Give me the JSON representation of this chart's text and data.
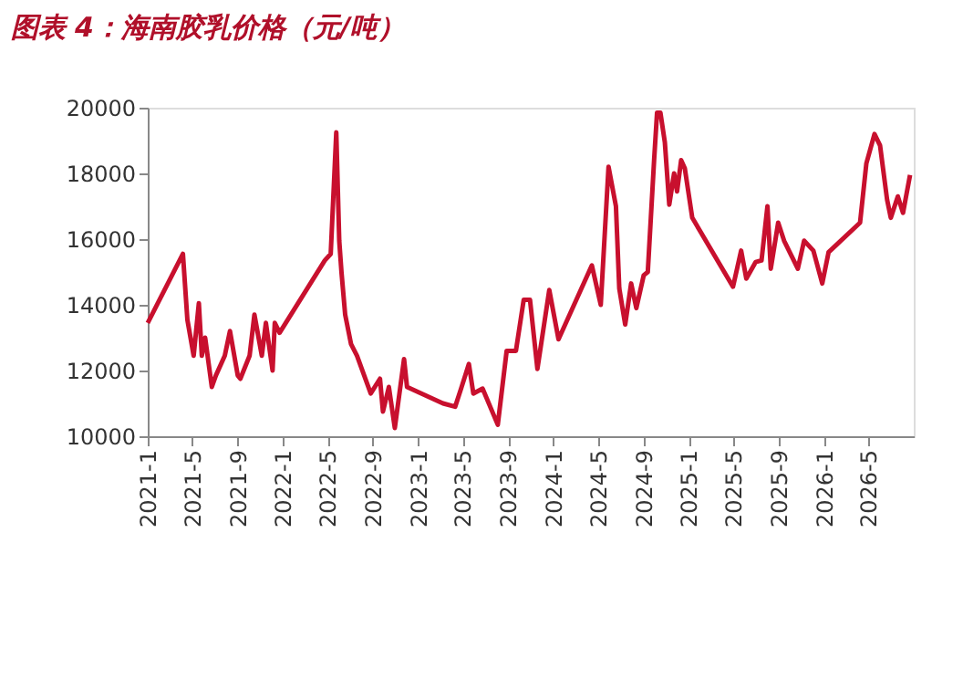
{
  "chart_data": {
    "type": "line",
    "title": "图表 4：海南胶乳价格（元/吨）",
    "xlim": [
      "2021-01-01",
      "2026-08-31"
    ],
    "xticks": [
      {
        "value": "2021-01-01",
        "label": "2021-1"
      },
      {
        "value": "2021-05-01",
        "label": "2021-5"
      },
      {
        "value": "2021-09-01",
        "label": "2021-9"
      },
      {
        "value": "2022-01-01",
        "label": "2022-1"
      },
      {
        "value": "2022-05-01",
        "label": "2022-5"
      },
      {
        "value": "2022-09-01",
        "label": "2022-9"
      },
      {
        "value": "2023-01-01",
        "label": "2023-1"
      },
      {
        "value": "2023-05-01",
        "label": "2023-5"
      },
      {
        "value": "2023-09-01",
        "label": "2023-9"
      },
      {
        "value": "2024-01-01",
        "label": "2024-1"
      },
      {
        "value": "2024-05-01",
        "label": "2024-5"
      },
      {
        "value": "2024-09-01",
        "label": "2024-9"
      },
      {
        "value": "2025-01-01",
        "label": "2025-1"
      },
      {
        "value": "2025-05-01",
        "label": "2025-5"
      },
      {
        "value": "2025-09-01",
        "label": "2025-9"
      },
      {
        "value": "2026-01-01",
        "label": "2026-1"
      },
      {
        "value": "2026-05-01",
        "label": "2026-5"
      }
    ],
    "ylim": [
      10000,
      20000
    ],
    "yticks": [
      10000,
      12000,
      14000,
      16000,
      18000,
      20000
    ],
    "grid": false,
    "line_style": "solid",
    "marker": "none",
    "x": [
      "2021-01-01",
      "2021-04-06",
      "2021-04-18",
      "2021-05-05",
      "2021-05-19",
      "2021-05-27",
      "2021-06-05",
      "2021-06-23",
      "2021-07-04",
      "2021-07-28",
      "2021-08-11",
      "2021-09-01",
      "2021-09-08",
      "2021-10-03",
      "2021-10-16",
      "2021-11-05",
      "2021-11-16",
      "2021-12-04",
      "2021-12-10",
      "2021-12-23",
      "2022-04-24",
      "2022-05-10",
      "2022-05-25",
      "2022-06-02",
      "2022-06-08",
      "2022-06-18",
      "2022-07-04",
      "2022-07-20",
      "2022-08-26",
      "2022-09-20",
      "2022-09-28",
      "2022-10-14",
      "2022-10-30",
      "2022-11-24",
      "2022-12-02",
      "2023-03-09",
      "2023-04-11",
      "2023-04-27",
      "2023-05-18",
      "2023-05-30",
      "2023-06-24",
      "2023-08-04",
      "2023-08-28",
      "2023-09-22",
      "2023-10-13",
      "2023-10-30",
      "2023-11-19",
      "2023-12-21",
      "2024-01-15",
      "2024-04-14",
      "2024-05-08",
      "2024-05-29",
      "2024-06-18",
      "2024-06-27",
      "2024-07-13",
      "2024-07-29",
      "2024-08-12",
      "2024-09-01",
      "2024-09-12",
      "2024-09-29",
      "2024-10-07",
      "2024-10-16",
      "2024-10-28",
      "2024-11-09",
      "2024-11-22",
      "2024-11-30",
      "2024-12-11",
      "2024-12-21",
      "2025-01-10",
      "2025-04-30",
      "2025-05-22",
      "2025-06-05",
      "2025-06-30",
      "2025-07-16",
      "2025-08-01",
      "2025-08-10",
      "2025-08-30",
      "2025-09-15",
      "2025-10-22",
      "2025-11-08",
      "2025-12-03",
      "2025-12-27",
      "2026-01-13",
      "2026-04-08",
      "2026-04-25",
      "2026-05-17",
      "2026-06-01",
      "2026-06-20",
      "2026-06-30",
      "2026-07-19",
      "2026-08-02",
      "2026-08-21"
    ],
    "series": [
      {
        "color": "#c8102e",
        "values": [
          13450,
          15550,
          13550,
          12450,
          14050,
          12450,
          13000,
          11500,
          11850,
          12450,
          13200,
          11850,
          11750,
          12450,
          13700,
          12450,
          13450,
          12000,
          13450,
          13150,
          15350,
          15550,
          19250,
          15950,
          15000,
          13700,
          12800,
          12450,
          11300,
          11750,
          10750,
          11500,
          10250,
          12350,
          11500,
          11000,
          10900,
          11450,
          12200,
          11300,
          11450,
          10350,
          12600,
          12600,
          14150,
          14150,
          12050,
          14450,
          12950,
          15200,
          14000,
          18200,
          17000,
          14500,
          13400,
          14650,
          13900,
          14900,
          15000,
          18400,
          19850,
          19850,
          18950,
          17050,
          18000,
          17450,
          18400,
          18150,
          16650,
          14550,
          15650,
          14800,
          15300,
          15350,
          17000,
          15100,
          16500,
          15950,
          15100,
          15950,
          15650,
          14650,
          15600,
          16500,
          18300,
          19200,
          18850,
          17200,
          16650,
          17300,
          16800,
          17950
        ]
      }
    ]
  }
}
